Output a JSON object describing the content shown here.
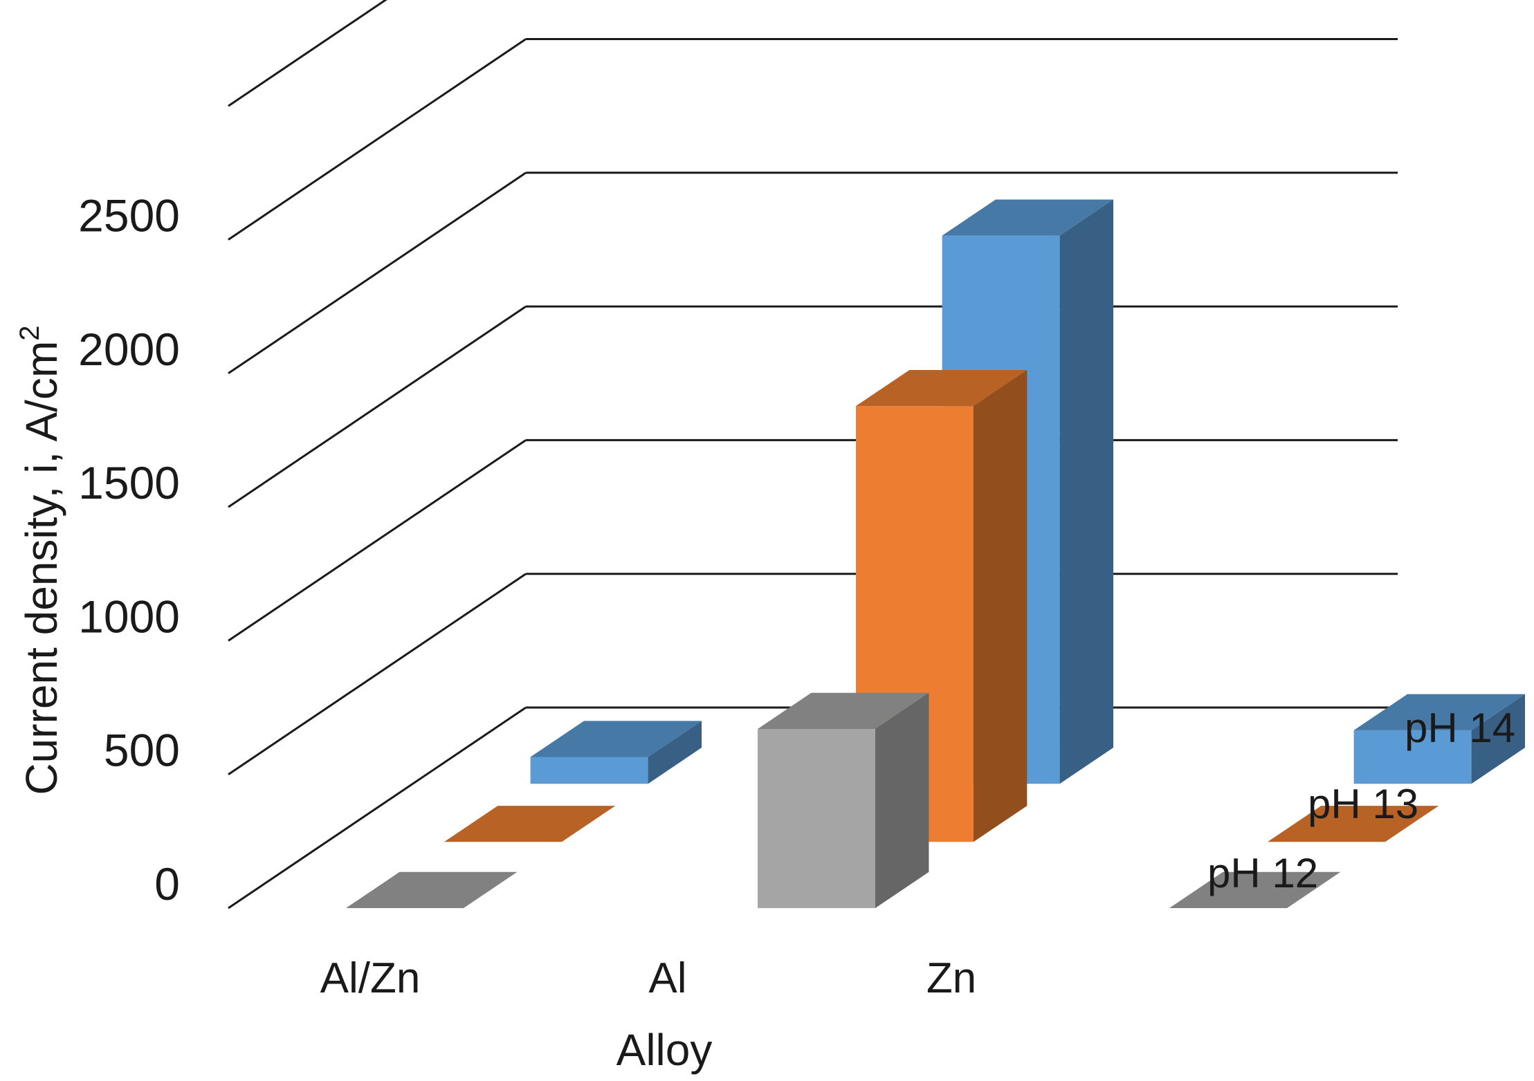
{
  "chart_data": {
    "type": "bar",
    "subtype": "3d-column",
    "title": "",
    "xlabel": "Alloy",
    "ylabel": "Current density, i, A/cm",
    "ylabel_superscript": "2",
    "categories": [
      "Al/Zn",
      "Al",
      "Zn"
    ],
    "series": [
      {
        "name": "pH 12",
        "values": [
          0,
          670,
          0
        ]
      },
      {
        "name": "pH 13",
        "values": [
          0,
          1630,
          0
        ]
      },
      {
        "name": "pH 14",
        "values": [
          100,
          2050,
          200
        ]
      }
    ],
    "yticks": [
      "0",
      "500",
      "1000",
      "1500",
      "2000",
      "2500"
    ],
    "ylim": [
      0,
      3000
    ],
    "grid": true,
    "colors": {
      "pH 12": "#a5a5a5",
      "pH 13": "#ed7d31",
      "pH 14": "#5b9bd5"
    }
  }
}
